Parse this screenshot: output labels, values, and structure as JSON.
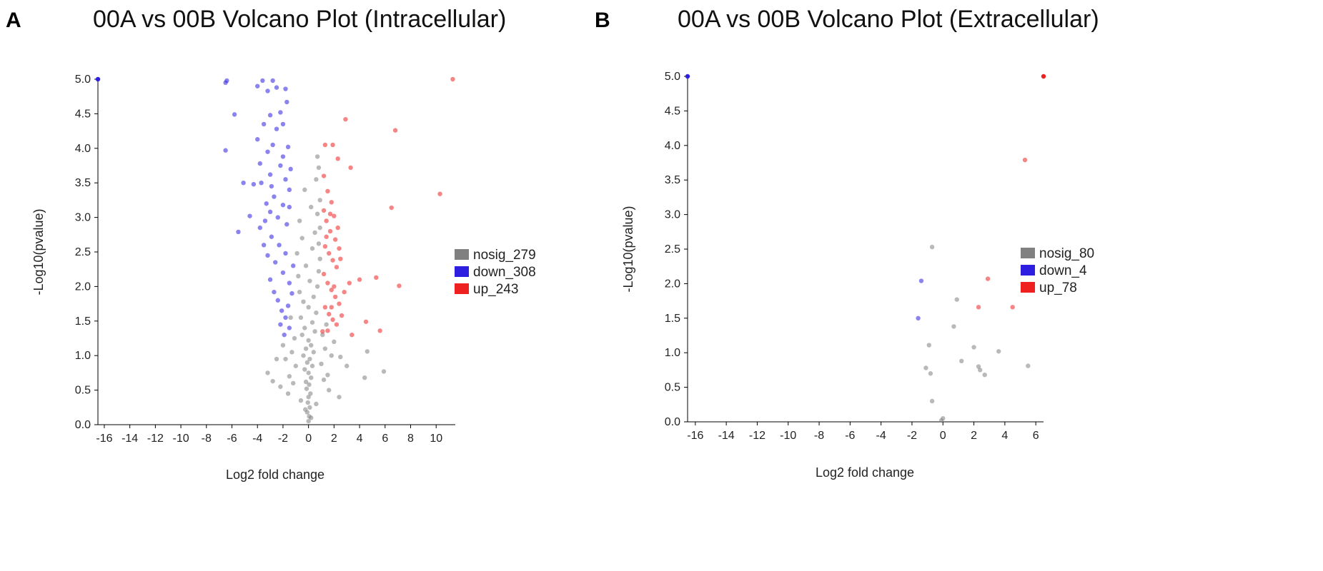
{
  "chart_data": [
    {
      "panel": "A",
      "type": "scatter",
      "title": "00A vs 00B Volcano Plot (Intracellular)",
      "xlabel": "Log2 fold change",
      "ylabel": "-Log10(pvalue)",
      "xlim": [
        -16.5,
        11.5
      ],
      "ylim": [
        0,
        5
      ],
      "xticks": [
        -16,
        -14,
        -12,
        -10,
        -8,
        -6,
        -4,
        -2,
        0,
        2,
        4,
        6,
        8,
        10
      ],
      "yticks": [
        "0.0",
        "0.5",
        "1.0",
        "1.5",
        "2.0",
        "2.5",
        "3.0",
        "3.5",
        "4.0",
        "4.5",
        "5.0"
      ],
      "legend_position": "right",
      "series": [
        {
          "name": "nosig_279",
          "color": "#808080",
          "points": [
            [
              0.0,
              0.05
            ],
            [
              0.05,
              0.12
            ],
            [
              -0.1,
              0.18
            ],
            [
              0.1,
              0.25
            ],
            [
              -0.05,
              0.32
            ],
            [
              0.0,
              0.4
            ],
            [
              0.15,
              0.45
            ],
            [
              -0.15,
              0.52
            ],
            [
              0.05,
              0.58
            ],
            [
              -0.2,
              0.62
            ],
            [
              0.2,
              0.68
            ],
            [
              0.0,
              0.75
            ],
            [
              -0.3,
              0.8
            ],
            [
              0.3,
              0.85
            ],
            [
              -0.1,
              0.9
            ],
            [
              0.1,
              0.95
            ],
            [
              -0.4,
              1.0
            ],
            [
              0.4,
              1.05
            ],
            [
              -0.2,
              1.1
            ],
            [
              0.2,
              1.15
            ],
            [
              0.0,
              1.22
            ],
            [
              -0.5,
              1.3
            ],
            [
              0.5,
              1.35
            ],
            [
              -0.3,
              1.4
            ],
            [
              0.3,
              1.48
            ],
            [
              -0.6,
              1.55
            ],
            [
              0.6,
              1.62
            ],
            [
              0.0,
              1.7
            ],
            [
              -0.4,
              1.78
            ],
            [
              0.4,
              1.85
            ],
            [
              -0.7,
              1.92
            ],
            [
              0.7,
              2.0
            ],
            [
              0.1,
              2.08
            ],
            [
              -0.8,
              2.15
            ],
            [
              0.8,
              2.22
            ],
            [
              -0.2,
              2.3
            ],
            [
              0.9,
              2.4
            ],
            [
              -0.9,
              2.48
            ],
            [
              0.3,
              2.55
            ],
            [
              0.8,
              2.62
            ],
            [
              -0.5,
              2.7
            ],
            [
              0.5,
              2.78
            ],
            [
              0.9,
              2.85
            ],
            [
              -0.7,
              2.95
            ],
            [
              0.7,
              3.05
            ],
            [
              0.2,
              3.15
            ],
            [
              0.9,
              3.25
            ],
            [
              -0.3,
              3.4
            ],
            [
              0.6,
              3.55
            ],
            [
              0.8,
              3.72
            ],
            [
              0.7,
              3.88
            ],
            [
              -1.2,
              0.6
            ],
            [
              1.2,
              0.65
            ],
            [
              -1.5,
              0.7
            ],
            [
              1.5,
              0.72
            ],
            [
              -1.0,
              0.85
            ],
            [
              1.0,
              0.88
            ],
            [
              -1.8,
              0.95
            ],
            [
              1.8,
              1.0
            ],
            [
              -1.3,
              1.05
            ],
            [
              1.3,
              1.1
            ],
            [
              -2.0,
              1.15
            ],
            [
              2.0,
              1.2
            ],
            [
              -1.1,
              1.25
            ],
            [
              1.1,
              1.3
            ],
            [
              -3.2,
              0.75
            ],
            [
              -2.8,
              0.63
            ],
            [
              -2.5,
              0.95
            ],
            [
              2.5,
              0.98
            ],
            [
              3.0,
              0.85
            ],
            [
              4.4,
              0.68
            ],
            [
              5.9,
              0.77
            ],
            [
              2.4,
              0.4
            ],
            [
              4.6,
              1.06
            ],
            [
              -2.2,
              0.55
            ],
            [
              1.6,
              0.5
            ],
            [
              -1.6,
              0.45
            ],
            [
              0.6,
              0.3
            ],
            [
              -0.6,
              0.35
            ],
            [
              1.4,
              1.45
            ],
            [
              -1.4,
              1.55
            ],
            [
              0.2,
              0.1
            ],
            [
              -0.25,
              0.22
            ]
          ]
        },
        {
          "name": "down_308",
          "color": "#2e1fe0",
          "points": [
            [
              -16.5,
              5.0
            ],
            [
              -6.4,
              4.98
            ],
            [
              -6.5,
              4.95
            ],
            [
              -5.8,
              4.49
            ],
            [
              -6.5,
              3.97
            ],
            [
              -5.5,
              2.79
            ],
            [
              -5.1,
              3.5
            ],
            [
              -4.6,
              3.02
            ],
            [
              -3.6,
              4.98
            ],
            [
              -3.2,
              4.83
            ],
            [
              -2.8,
              4.98
            ],
            [
              -3.0,
              4.48
            ],
            [
              -2.5,
              4.88
            ],
            [
              -1.8,
              4.86
            ],
            [
              -2.0,
              4.35
            ],
            [
              -1.7,
              4.67
            ],
            [
              -4.0,
              4.9
            ],
            [
              -4.0,
              4.13
            ],
            [
              -3.8,
              3.78
            ],
            [
              -3.5,
              4.35
            ],
            [
              -3.2,
              3.95
            ],
            [
              -3.0,
              3.62
            ],
            [
              -2.8,
              4.05
            ],
            [
              -2.5,
              4.28
            ],
            [
              -2.2,
              4.52
            ],
            [
              -2.0,
              3.88
            ],
            [
              -1.8,
              3.55
            ],
            [
              -1.6,
              4.02
            ],
            [
              -1.5,
              3.4
            ],
            [
              -3.7,
              3.5
            ],
            [
              -3.3,
              3.2
            ],
            [
              -3.0,
              3.08
            ],
            [
              -2.7,
              3.3
            ],
            [
              -2.4,
              3.0
            ],
            [
              -2.0,
              3.18
            ],
            [
              -1.7,
              2.9
            ],
            [
              -1.5,
              3.15
            ],
            [
              -4.3,
              3.48
            ],
            [
              -3.8,
              2.85
            ],
            [
              -3.5,
              2.6
            ],
            [
              -3.2,
              2.45
            ],
            [
              -2.9,
              2.72
            ],
            [
              -2.6,
              2.35
            ],
            [
              -2.3,
              2.6
            ],
            [
              -2.0,
              2.2
            ],
            [
              -1.8,
              2.48
            ],
            [
              -1.5,
              2.05
            ],
            [
              -3.0,
              2.1
            ],
            [
              -2.7,
              1.92
            ],
            [
              -2.4,
              1.8
            ],
            [
              -2.1,
              1.65
            ],
            [
              -1.8,
              1.55
            ],
            [
              -1.5,
              1.4
            ],
            [
              -1.6,
              1.72
            ],
            [
              -1.3,
              1.9
            ],
            [
              -1.2,
              2.3
            ],
            [
              -2.2,
              1.45
            ],
            [
              -1.9,
              1.3
            ],
            [
              -3.4,
              2.95
            ],
            [
              -2.9,
              3.45
            ],
            [
              -2.2,
              3.75
            ],
            [
              -1.4,
              3.7
            ]
          ]
        },
        {
          "name": "up_243",
          "color": "#ee2020",
          "points": [
            [
              11.3,
              5.0
            ],
            [
              2.9,
              4.42
            ],
            [
              6.8,
              4.26
            ],
            [
              1.3,
              4.05
            ],
            [
              1.9,
              4.05
            ],
            [
              2.3,
              3.85
            ],
            [
              3.3,
              3.72
            ],
            [
              10.3,
              3.34
            ],
            [
              6.5,
              3.14
            ],
            [
              1.2,
              3.6
            ],
            [
              1.5,
              3.38
            ],
            [
              1.8,
              3.22
            ],
            [
              2.0,
              3.02
            ],
            [
              1.4,
              2.95
            ],
            [
              1.7,
              2.8
            ],
            [
              2.1,
              2.68
            ],
            [
              1.3,
              2.58
            ],
            [
              1.6,
              2.48
            ],
            [
              1.9,
              2.38
            ],
            [
              2.2,
              2.28
            ],
            [
              1.2,
              2.18
            ],
            [
              1.5,
              2.05
            ],
            [
              1.8,
              1.95
            ],
            [
              2.1,
              1.85
            ],
            [
              2.4,
              1.75
            ],
            [
              1.3,
              1.7
            ],
            [
              1.6,
              1.6
            ],
            [
              1.9,
              1.52
            ],
            [
              2.2,
              1.45
            ],
            [
              2.8,
              1.92
            ],
            [
              3.2,
              2.05
            ],
            [
              4.0,
              2.1
            ],
            [
              5.3,
              2.13
            ],
            [
              7.1,
              2.01
            ],
            [
              4.5,
              1.49
            ],
            [
              5.6,
              1.36
            ],
            [
              3.4,
              1.3
            ],
            [
              2.6,
              1.58
            ],
            [
              2.4,
              2.55
            ],
            [
              1.4,
              2.72
            ],
            [
              1.7,
              3.05
            ],
            [
              2.0,
              2.0
            ],
            [
              1.1,
              1.35
            ],
            [
              1.5,
              1.36
            ],
            [
              2.3,
              2.85
            ],
            [
              1.2,
              3.1
            ],
            [
              2.5,
              2.4
            ],
            [
              1.8,
              1.7
            ]
          ]
        }
      ]
    },
    {
      "panel": "B",
      "type": "scatter",
      "title": "00A vs 00B Volcano Plot (Extracellular)",
      "xlabel": "Log2 fold change",
      "ylabel": "-Log10(pvalue)",
      "xlim": [
        -16.5,
        6.5
      ],
      "ylim": [
        0,
        5
      ],
      "xticks": [
        -16,
        -14,
        -12,
        -10,
        -8,
        -6,
        -4,
        -2,
        0,
        2,
        4,
        6
      ],
      "yticks": [
        "0.0",
        "0.5",
        "1.0",
        "1.5",
        "2.0",
        "2.5",
        "3.0",
        "3.5",
        "4.0",
        "4.5",
        "5.0"
      ],
      "legend_position": "right",
      "series": [
        {
          "name": "nosig_80",
          "color": "#808080",
          "points": [
            [
              -0.7,
              2.53
            ],
            [
              0.9,
              1.77
            ],
            [
              0.7,
              1.38
            ],
            [
              -0.9,
              1.11
            ],
            [
              2.0,
              1.08
            ],
            [
              3.6,
              1.02
            ],
            [
              1.2,
              0.88
            ],
            [
              -1.1,
              0.78
            ],
            [
              -0.8,
              0.7
            ],
            [
              2.3,
              0.8
            ],
            [
              2.4,
              0.75
            ],
            [
              2.7,
              0.68
            ],
            [
              5.5,
              0.81
            ],
            [
              -0.7,
              0.3
            ],
            [
              0.0,
              0.05
            ],
            [
              -0.1,
              0.02
            ]
          ]
        },
        {
          "name": "down_4",
          "color": "#2e1fe0",
          "points": [
            [
              -16.5,
              5.0
            ],
            [
              -1.4,
              2.04
            ],
            [
              -1.6,
              1.5
            ]
          ]
        },
        {
          "name": "up_78",
          "color": "#ee2020",
          "points": [
            [
              6.5,
              5.0
            ],
            [
              5.3,
              3.79
            ],
            [
              2.9,
              2.07
            ],
            [
              2.3,
              1.66
            ],
            [
              4.5,
              1.66
            ]
          ]
        }
      ]
    }
  ]
}
